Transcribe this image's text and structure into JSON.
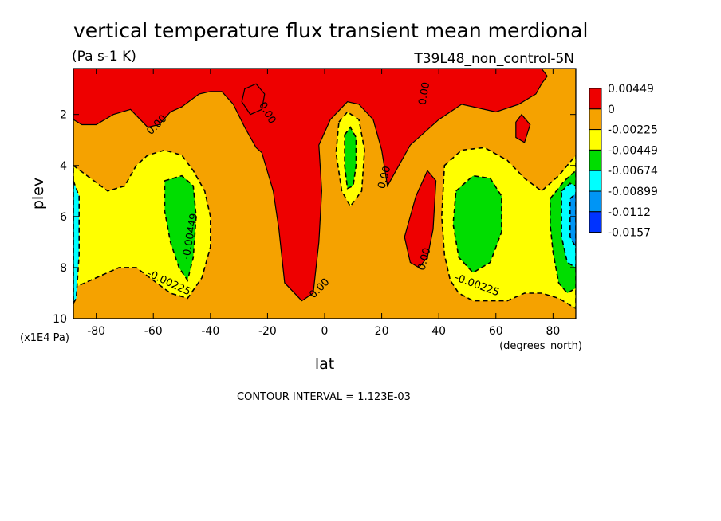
{
  "chart_data": {
    "type": "heatmap",
    "title": "vertical temperature flux transient mean merdional",
    "units_label": "(Pa s-1 K)",
    "run_label": "T39L48_non_control-5N",
    "xlabel": "lat",
    "x_units": "(degrees_north)",
    "ylabel": "plev",
    "y_units": "(x1E4 Pa)",
    "footer": "CONTOUR INTERVAL = 1.123E-03",
    "xlim": [
      -88,
      88
    ],
    "ylim": [
      10,
      0.2
    ],
    "x_ticks": [
      -80,
      -60,
      -40,
      -20,
      0,
      20,
      40,
      60,
      80
    ],
    "x_tick_labels": [
      "-80",
      "-60",
      "-40",
      "-20",
      "0",
      "20",
      "40",
      "60",
      "80"
    ],
    "y_ticks": [
      2,
      4,
      6,
      8,
      10
    ],
    "y_tick_labels": [
      "2",
      "4",
      "6",
      "8",
      "10"
    ],
    "colorbar": {
      "labels": [
        "0.00449",
        "0",
        "-0.00225",
        "-0.00449",
        "-0.00674",
        "-0.00899",
        "-0.0112",
        "-0.0157"
      ],
      "colors": [
        "#ee0000",
        "#f5a200",
        "#ffff00",
        "#00dd00",
        "#00ffff",
        "#0095f5",
        "#0033ff"
      ]
    },
    "regions": [
      {
        "level": 1,
        "points": [
          [
            -88,
            10
          ],
          [
            -88,
            0.2
          ],
          [
            88,
            0.2
          ],
          [
            88,
            10
          ]
        ]
      },
      {
        "level": 0,
        "points": [
          [
            -88,
            0.2
          ],
          [
            -48,
            0.2
          ],
          [
            -18,
            0.2
          ],
          [
            -8,
            0.2
          ],
          [
            -4,
            0.2
          ],
          [
            0,
            0.2
          ],
          [
            25,
            0.2
          ],
          [
            32,
            0.2
          ],
          [
            38,
            0.2
          ],
          [
            44,
            0.2
          ],
          [
            58,
            0.2
          ],
          [
            70,
            0.2
          ],
          [
            76,
            0.2
          ],
          [
            78,
            0.5
          ],
          [
            76,
            0.8
          ],
          [
            74,
            1.2
          ],
          [
            68,
            1.6
          ],
          [
            60,
            1.9
          ],
          [
            48,
            1.6
          ],
          [
            40,
            2.2
          ],
          [
            30,
            3.2
          ],
          [
            22,
            4.8
          ],
          [
            20,
            3.4
          ],
          [
            17,
            2.2
          ],
          [
            12,
            1.6
          ],
          [
            8,
            1.5
          ],
          [
            2,
            2.2
          ],
          [
            -2,
            3.2
          ],
          [
            -1,
            5.0
          ],
          [
            -2,
            7.0
          ],
          [
            -4,
            9.0
          ],
          [
            -8,
            9.3
          ],
          [
            -14,
            8.6
          ],
          [
            -16,
            6.5
          ],
          [
            -18,
            5.0
          ],
          [
            -22,
            3.5
          ],
          [
            -24,
            3.3
          ],
          [
            -28,
            2.5
          ],
          [
            -32,
            1.6
          ],
          [
            -36,
            1.1
          ],
          [
            -40,
            1.1
          ],
          [
            -44,
            1.2
          ],
          [
            -50,
            1.7
          ],
          [
            -54,
            1.9
          ],
          [
            -58,
            2.4
          ],
          [
            -62,
            2.5
          ],
          [
            -68,
            1.8
          ],
          [
            -74,
            2.0
          ],
          [
            -80,
            2.4
          ],
          [
            -85,
            2.4
          ],
          [
            -88,
            2.2
          ]
        ]
      },
      {
        "level": 0,
        "points": [
          [
            -28,
            1.0
          ],
          [
            -24,
            0.8
          ],
          [
            -21,
            1.2
          ],
          [
            -22,
            1.8
          ],
          [
            -26,
            2.0
          ],
          [
            -29,
            1.5
          ]
        ]
      },
      {
        "level": 0,
        "points": [
          [
            28,
            6.8
          ],
          [
            32,
            5.2
          ],
          [
            36,
            4.2
          ],
          [
            39,
            4.6
          ],
          [
            38,
            6.5
          ],
          [
            36,
            7.6
          ],
          [
            33,
            8.0
          ],
          [
            30,
            7.8
          ]
        ]
      },
      {
        "level": 0,
        "points": [
          [
            67,
            2.3
          ],
          [
            69,
            2.0
          ],
          [
            72,
            2.4
          ],
          [
            70,
            3.1
          ],
          [
            67,
            2.9
          ]
        ]
      },
      {
        "level": 2,
        "points": [
          [
            -88,
            4.0
          ],
          [
            -82,
            4.5
          ],
          [
            -76,
            5.0
          ],
          [
            -70,
            4.8
          ],
          [
            -66,
            4.0
          ],
          [
            -62,
            3.6
          ],
          [
            -56,
            3.4
          ],
          [
            -50,
            3.6
          ],
          [
            -46,
            4.2
          ],
          [
            -42,
            5.0
          ],
          [
            -40,
            6.0
          ],
          [
            -40,
            7.2
          ],
          [
            -43,
            8.4
          ],
          [
            -48,
            9.2
          ],
          [
            -54,
            9.0
          ],
          [
            -60,
            8.5
          ],
          [
            -66,
            8.0
          ],
          [
            -72,
            8.0
          ],
          [
            -78,
            8.3
          ],
          [
            -84,
            8.6
          ],
          [
            -88,
            8.8
          ]
        ]
      },
      {
        "level": 2,
        "points": [
          [
            42,
            4.0
          ],
          [
            48,
            3.4
          ],
          [
            56,
            3.3
          ],
          [
            64,
            3.8
          ],
          [
            70,
            4.5
          ],
          [
            76,
            5.0
          ],
          [
            82,
            4.4
          ],
          [
            88,
            3.6
          ],
          [
            88,
            9.6
          ],
          [
            82,
            9.2
          ],
          [
            76,
            9.0
          ],
          [
            70,
            9.0
          ],
          [
            64,
            9.3
          ],
          [
            58,
            9.3
          ],
          [
            52,
            9.3
          ],
          [
            47,
            9.0
          ],
          [
            44,
            8.5
          ],
          [
            42,
            7.5
          ],
          [
            41,
            6.0
          ]
        ]
      },
      {
        "level": 2,
        "points": [
          [
            5,
            2.3
          ],
          [
            8,
            1.9
          ],
          [
            12,
            2.2
          ],
          [
            14,
            3.4
          ],
          [
            13,
            5.0
          ],
          [
            9,
            5.6
          ],
          [
            6,
            5.0
          ],
          [
            4,
            3.5
          ]
        ]
      },
      {
        "level": 3,
        "points": [
          [
            -56,
            4.6
          ],
          [
            -50,
            4.4
          ],
          [
            -46,
            4.8
          ],
          [
            -45,
            6.0
          ],
          [
            -46,
            7.6
          ],
          [
            -48,
            8.5
          ],
          [
            -51,
            8.0
          ],
          [
            -54,
            7.0
          ],
          [
            -56,
            5.8
          ]
        ]
      },
      {
        "level": 3,
        "points": [
          [
            46,
            5.0
          ],
          [
            52,
            4.4
          ],
          [
            58,
            4.5
          ],
          [
            62,
            5.2
          ],
          [
            62,
            6.6
          ],
          [
            58,
            7.8
          ],
          [
            52,
            8.2
          ],
          [
            47,
            7.6
          ],
          [
            45,
            6.3
          ]
        ]
      },
      {
        "level": 3,
        "points": [
          [
            7,
            2.8
          ],
          [
            9,
            2.5
          ],
          [
            11,
            2.9
          ],
          [
            11,
            4.0
          ],
          [
            10,
            4.8
          ],
          [
            8,
            4.9
          ],
          [
            7,
            4.0
          ]
        ]
      },
      {
        "level": 3,
        "points": [
          [
            79,
            5.3
          ],
          [
            84,
            4.6
          ],
          [
            88,
            4.2
          ],
          [
            88,
            8.8
          ],
          [
            85,
            9.0
          ],
          [
            82,
            8.6
          ],
          [
            80,
            7.4
          ],
          [
            79,
            6.3
          ]
        ]
      },
      {
        "level": 4,
        "points": [
          [
            -88,
            4.6
          ],
          [
            -86,
            5.2
          ],
          [
            -86,
            7.5
          ],
          [
            -87,
            9.2
          ],
          [
            -88,
            9.4
          ]
        ]
      },
      {
        "level": 4,
        "points": [
          [
            83,
            5.0
          ],
          [
            86,
            4.7
          ],
          [
            88,
            4.8
          ],
          [
            88,
            8.0
          ],
          [
            85,
            7.8
          ],
          [
            83,
            6.8
          ]
        ]
      },
      {
        "level": 5,
        "points": [
          [
            86,
            5.3
          ],
          [
            88,
            5.1
          ],
          [
            88,
            7.2
          ],
          [
            86,
            6.8
          ]
        ]
      }
    ],
    "contour_labels": [
      {
        "text": "0.00",
        "x": -58,
        "y": 2.5,
        "angle": -45
      },
      {
        "text": "0.00",
        "x": -21,
        "y": 2.0,
        "angle": 60
      },
      {
        "text": "0.00",
        "x": 36,
        "y": 1.2,
        "angle": -80
      },
      {
        "text": "0.00",
        "x": 22,
        "y": 4.5,
        "angle": -75
      },
      {
        "text": "0.00",
        "x": 36,
        "y": 7.7,
        "angle": -75
      },
      {
        "text": "0.00",
        "x": -1,
        "y": 8.9,
        "angle": -45
      },
      {
        "text": "-0.00449",
        "x": -46,
        "y": 6.8,
        "angle": -80
      },
      {
        "text": "-0.00225",
        "x": -55,
        "y": 8.7,
        "angle": 25
      },
      {
        "text": "-0.00225",
        "x": 53,
        "y": 8.8,
        "angle": 20
      }
    ]
  }
}
